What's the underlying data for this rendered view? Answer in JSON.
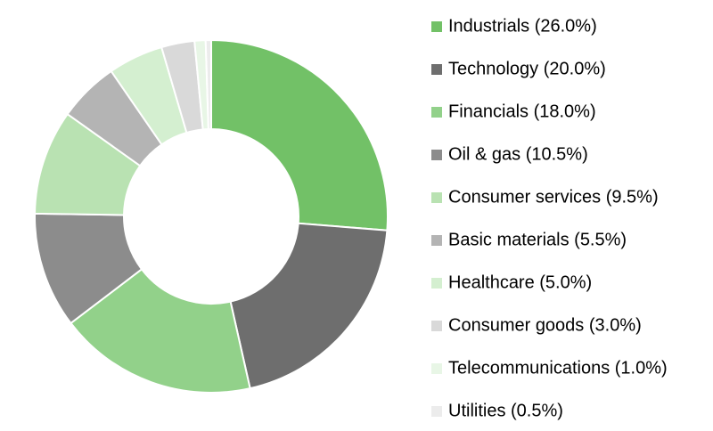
{
  "chart_data": {
    "type": "donut",
    "categories": [
      "Industrials (26.0%)",
      "Technology (20.0%)",
      "Financials (18.0%)",
      "Oil & gas (10.5%)",
      "Consumer services (9.5%)",
      "Basic materials (5.5%)",
      "Healthcare (5.0%)",
      "Consumer goods (3.0%)",
      "Telecommunications (1.0%)",
      "Utilities (0.5%)"
    ],
    "values": [
      26.0,
      20.0,
      18.0,
      10.5,
      9.5,
      5.5,
      5.0,
      3.0,
      1.0,
      0.5
    ],
    "colors": [
      "#72c167",
      "#6e6e6e",
      "#92d18a",
      "#8c8c8c",
      "#b9e2b2",
      "#b4b4b4",
      "#d4efd0",
      "#d9d9d9",
      "#e8f6e6",
      "#ececec"
    ],
    "legend": "right"
  }
}
